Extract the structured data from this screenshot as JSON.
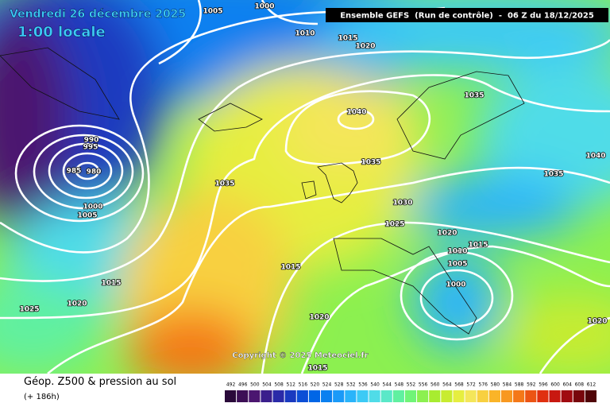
{
  "header": {
    "date": "Vendredi 26 décembre 2025",
    "time": "1:00 locale",
    "run": "Ensemble GEFS  (Run de contrôle)  -  06 Z du 18/12/2025"
  },
  "isobar_labels": [
    1005,
    1000,
    1010,
    1015,
    1020,
    1035,
    1040,
    1035,
    1035,
    1030,
    1025,
    1020,
    1015,
    1010,
    1005,
    1000,
    1015,
    1020,
    1015,
    1020,
    1025,
    1000,
    1005,
    985,
    980,
    995,
    990,
    1035,
    1040,
    1020,
    1015
  ],
  "copyright": "Copyright © 2025 Meteociel.fr",
  "legend": {
    "title": "Géop. Z500 & pression au sol",
    "lead": "(+ 186h)",
    "scale": [
      492,
      496,
      500,
      504,
      508,
      512,
      516,
      520,
      524,
      528,
      532,
      536,
      540,
      544,
      548,
      552,
      556,
      560,
      564,
      568,
      572,
      576,
      580,
      584,
      588,
      592,
      596,
      600,
      604,
      608,
      612
    ],
    "colors": [
      "#2a0a3a",
      "#3c0f55",
      "#4b1670",
      "#3a1f8c",
      "#2a2aa8",
      "#1a3ac0",
      "#0c4ed6",
      "#0066e6",
      "#0a80f0",
      "#1a9af8",
      "#2ab4fa",
      "#3ccaf5",
      "#50dce8",
      "#5ae8c8",
      "#60f0a0",
      "#70f478",
      "#8cf050",
      "#a8ec30",
      "#c8ec30",
      "#e6ee40",
      "#f4e65a",
      "#f8d040",
      "#fab428",
      "#f89820",
      "#f47818",
      "#ec5414",
      "#e03010",
      "#c81810",
      "#a00a10",
      "#78060c",
      "#500408"
    ]
  }
}
